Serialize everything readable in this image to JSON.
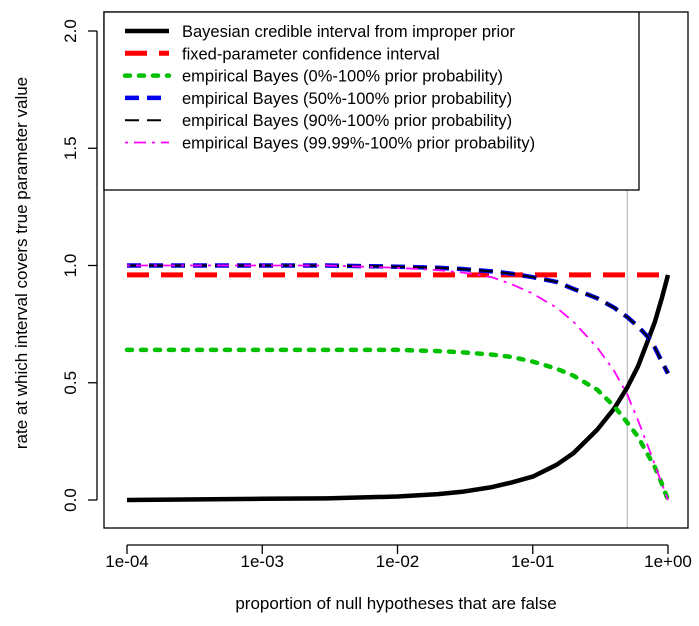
{
  "chart_data": {
    "type": "line",
    "title": "",
    "xlabel": "proportion of null hypotheses that are false",
    "ylabel": "rate at which interval covers true parameter value",
    "xscale": "log",
    "xlim": [
      0.0001,
      1
    ],
    "ylim": [
      0,
      2.0
    ],
    "xticks": [
      0.0001,
      0.001,
      0.01,
      0.1,
      1
    ],
    "xtick_labels": [
      "1e-04",
      "1e-03",
      "1e-02",
      "1e-01",
      "1e+00"
    ],
    "yticks": [
      0,
      0.5,
      1.0,
      1.5,
      2.0
    ],
    "ytick_labels": [
      "0.0",
      "0.5",
      "1.0",
      "1.5",
      "2.0"
    ],
    "grid": false,
    "legend_position": "top",
    "reference_line": {
      "orientation": "vertical",
      "x": 0.5,
      "color": "#c0c0c0"
    },
    "x": [
      0.0001,
      0.001,
      0.003,
      0.01,
      0.02,
      0.03,
      0.05,
      0.07,
      0.1,
      0.15,
      0.2,
      0.3,
      0.4,
      0.5,
      0.6,
      0.7,
      0.8,
      0.9,
      1.0
    ],
    "series": [
      {
        "name": "Bayesian credible interval from improper prior",
        "color": "#000000",
        "dash": "solid",
        "width": 4.5,
        "values": [
          0.0,
          0.005,
          0.007,
          0.015,
          0.025,
          0.035,
          0.055,
          0.075,
          0.1,
          0.15,
          0.2,
          0.3,
          0.39,
          0.48,
          0.57,
          0.67,
          0.76,
          0.86,
          0.96
        ]
      },
      {
        "name": "fixed-parameter confidence interval",
        "color": "#ff0000",
        "dash": "longdash",
        "width": 5,
        "values": [
          0.96,
          0.96,
          0.96,
          0.96,
          0.96,
          0.96,
          0.96,
          0.96,
          0.96,
          0.96,
          0.96,
          0.96,
          0.96,
          0.96,
          0.96,
          0.96,
          0.96,
          0.96,
          0.96
        ]
      },
      {
        "name": "empirical Bayes (0%-100% prior probability)",
        "color": "#00c000",
        "dash": "dotted",
        "width": 4.5,
        "values": [
          0.64,
          0.64,
          0.64,
          0.64,
          0.635,
          0.63,
          0.62,
          0.61,
          0.59,
          0.56,
          0.53,
          0.47,
          0.4,
          0.33,
          0.27,
          0.2,
          0.14,
          0.07,
          0.0
        ]
      },
      {
        "name": "empirical Bayes (50%-100% prior probability)",
        "color": "#0000ee",
        "dash": "dashed",
        "width": 4.5,
        "values": [
          1.0,
          1.0,
          1.0,
          0.995,
          0.99,
          0.985,
          0.975,
          0.965,
          0.95,
          0.93,
          0.9,
          0.86,
          0.82,
          0.78,
          0.74,
          0.7,
          0.65,
          0.59,
          0.54
        ]
      },
      {
        "name": "empirical Bayes (90%-100% prior probability)",
        "color": "#000000",
        "dash": "dashed",
        "width": 2,
        "values": [
          1.0,
          1.0,
          1.0,
          0.995,
          0.99,
          0.985,
          0.975,
          0.965,
          0.95,
          0.93,
          0.9,
          0.86,
          0.82,
          0.78,
          0.74,
          0.7,
          0.65,
          0.59,
          0.54
        ]
      },
      {
        "name": "empirical Bayes (99.99%-100% prior probability)",
        "color": "#ff00ff",
        "dash": "dotdash",
        "width": 1.8,
        "values": [
          1.0,
          1.0,
          1.0,
          0.99,
          0.98,
          0.97,
          0.95,
          0.92,
          0.88,
          0.82,
          0.76,
          0.65,
          0.55,
          0.45,
          0.34,
          0.24,
          0.15,
          0.07,
          0.0
        ]
      }
    ]
  }
}
